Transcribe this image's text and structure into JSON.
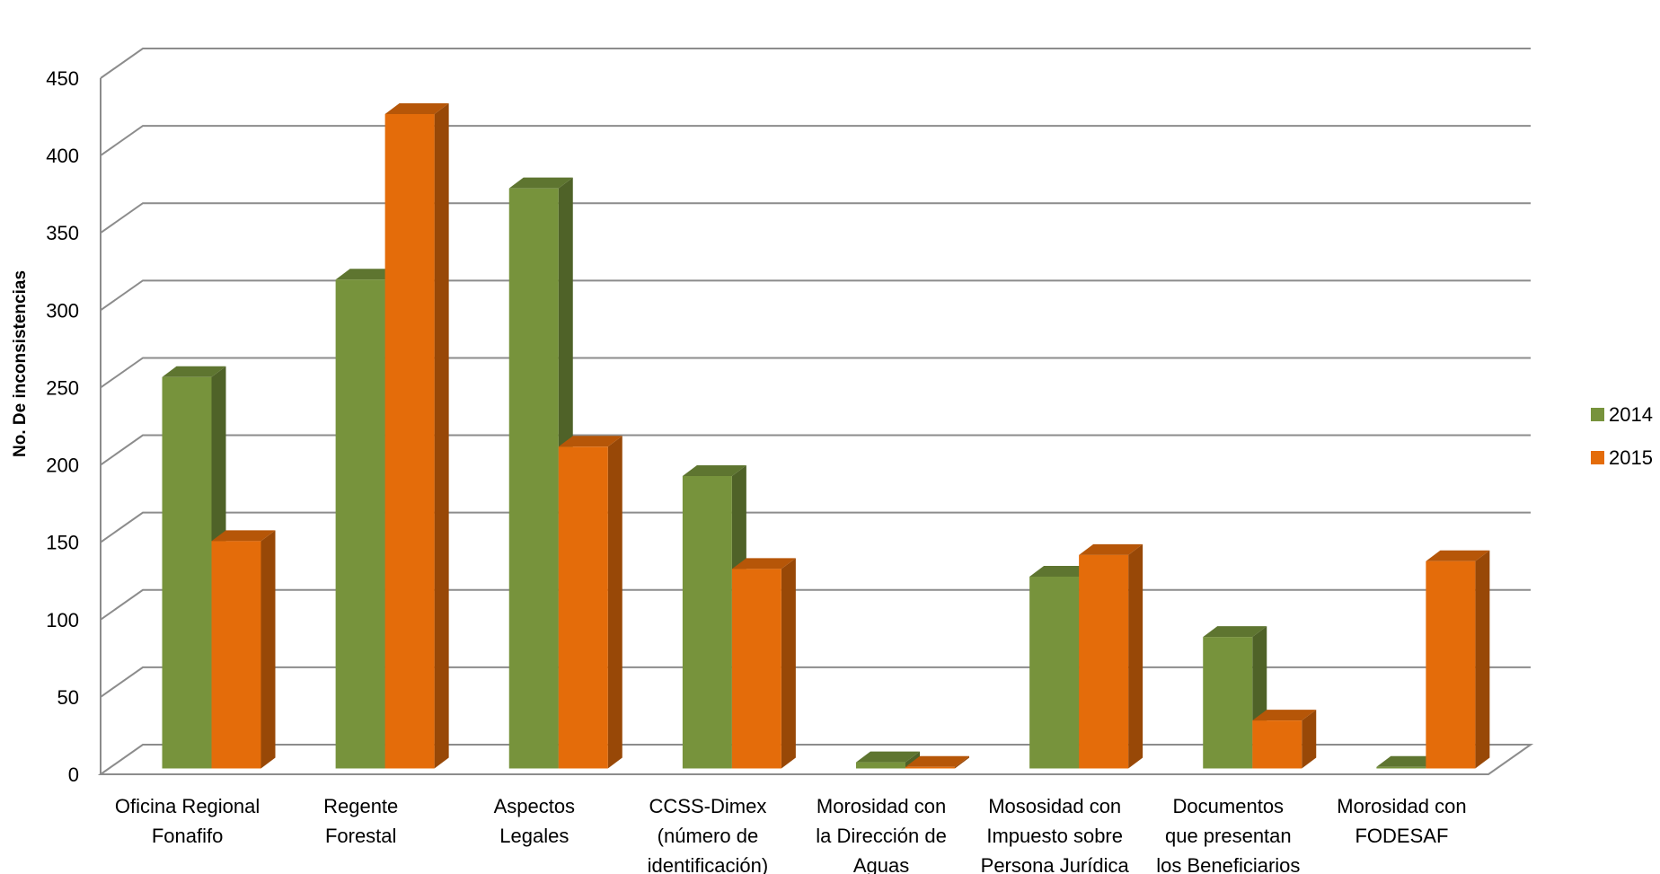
{
  "chart_data": {
    "type": "bar",
    "style": "3d-clustered-column",
    "categories": [
      [
        "Oficina Regional",
        "Fonafifo"
      ],
      [
        "Regente",
        "Forestal"
      ],
      [
        "Aspectos",
        "Legales"
      ],
      [
        "CCSS-Dimex",
        "(número de",
        "identificación)"
      ],
      [
        "Morosidad con",
        "la Dirección de",
        "Aguas"
      ],
      [
        "Mososidad con",
        "Impuesto sobre",
        "Persona Jurídica"
      ],
      [
        "Documentos",
        "que presentan",
        "los Beneficiarios"
      ],
      [
        "Morosidad con",
        "FODESAF"
      ]
    ],
    "series": [
      {
        "name": "2014",
        "values": [
          253,
          316,
          375,
          189,
          4,
          124,
          85,
          1
        ]
      },
      {
        "name": "2015",
        "values": [
          147,
          423,
          208,
          129,
          1,
          138,
          31,
          134
        ]
      }
    ],
    "colors": {
      "2014": {
        "front": "#77933C",
        "side": "#4F6228",
        "top": "#5E7530"
      },
      "2015": {
        "front": "#E46C0A",
        "side": "#984807",
        "top": "#B65608"
      }
    },
    "ylabel": "No. De inconsistencias",
    "xlabel": "",
    "title": "",
    "ylim": [
      0,
      450
    ],
    "yticks": [
      0,
      50,
      100,
      150,
      200,
      250,
      300,
      350,
      400,
      450
    ],
    "grid": true,
    "legend": "right"
  }
}
